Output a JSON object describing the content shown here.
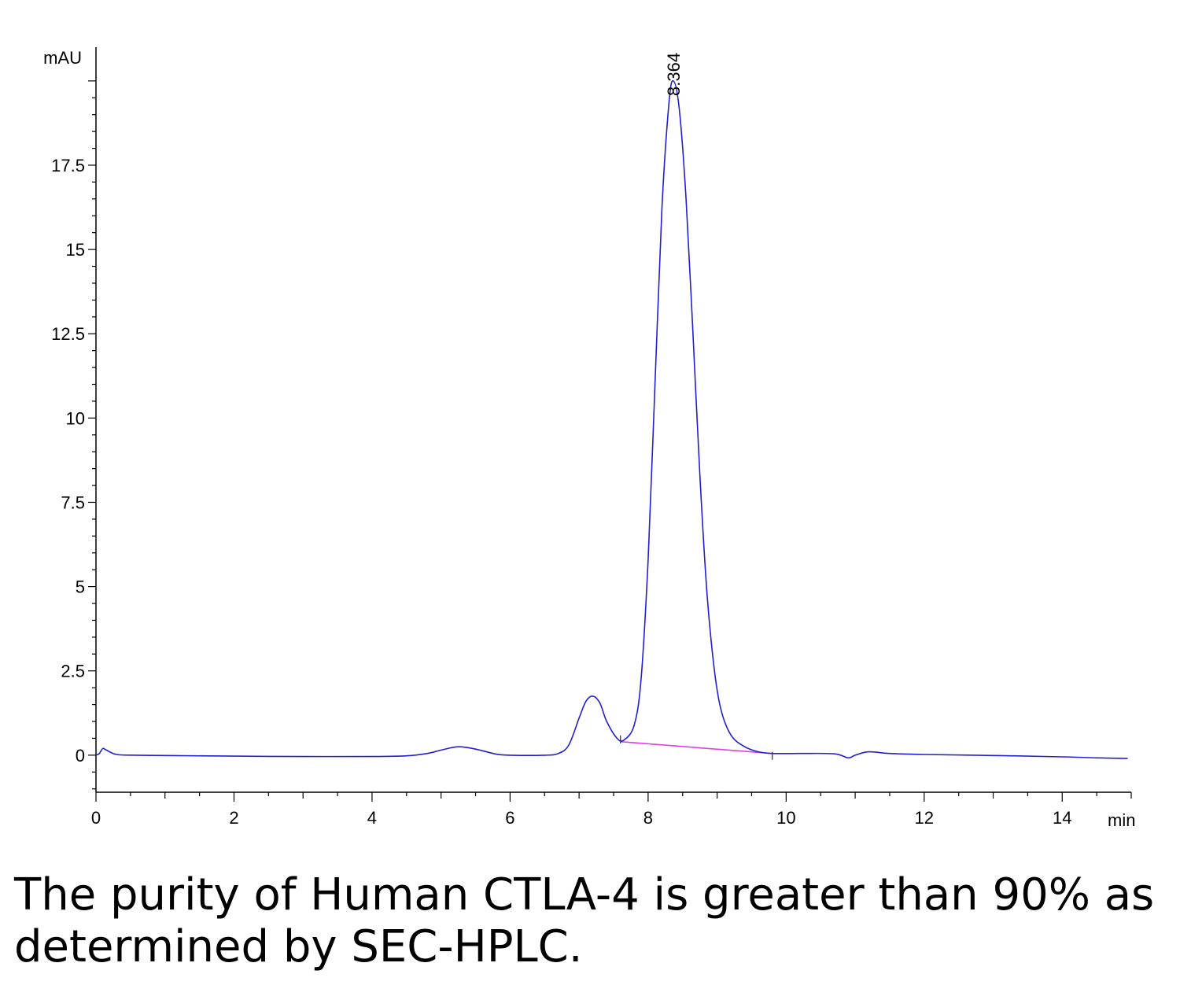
{
  "chart_data": {
    "type": "line",
    "y_unit": "mAU",
    "x_unit": "min",
    "xlim": [
      0,
      15
    ],
    "ylim": [
      -1.1,
      21
    ],
    "x_ticks": [
      0,
      2,
      4,
      6,
      8,
      10,
      12,
      14
    ],
    "y_ticks": [
      0,
      2.5,
      5,
      7.5,
      10,
      12.5,
      15,
      17.5
    ],
    "peak_label": "8.364",
    "peak_label_x": 8.364,
    "colors": {
      "trace": "#2020d0",
      "baseline": "#e040e0",
      "axis": "#000000"
    },
    "baseline_segment": [
      [
        7.6,
        0.4
      ],
      [
        9.8,
        0.05
      ]
    ],
    "series": [
      {
        "values": [
          [
            0.0,
            0.0
          ],
          [
            0.05,
            0.05
          ],
          [
            0.1,
            0.2
          ],
          [
            0.15,
            0.15
          ],
          [
            0.3,
            0.02
          ],
          [
            0.6,
            0.0
          ],
          [
            1.0,
            -0.01
          ],
          [
            2.0,
            -0.03
          ],
          [
            3.0,
            -0.04
          ],
          [
            4.0,
            -0.04
          ],
          [
            4.5,
            -0.02
          ],
          [
            4.8,
            0.05
          ],
          [
            5.0,
            0.15
          ],
          [
            5.25,
            0.25
          ],
          [
            5.5,
            0.18
          ],
          [
            5.8,
            0.03
          ],
          [
            6.0,
            0.0
          ],
          [
            6.5,
            0.0
          ],
          [
            6.7,
            0.05
          ],
          [
            6.85,
            0.3
          ],
          [
            7.0,
            1.1
          ],
          [
            7.1,
            1.6
          ],
          [
            7.2,
            1.75
          ],
          [
            7.3,
            1.55
          ],
          [
            7.4,
            1.0
          ],
          [
            7.55,
            0.5
          ],
          [
            7.65,
            0.45
          ],
          [
            7.8,
            0.9
          ],
          [
            7.9,
            2.3
          ],
          [
            8.0,
            5.8
          ],
          [
            8.1,
            11.0
          ],
          [
            8.2,
            16.2
          ],
          [
            8.3,
            19.3
          ],
          [
            8.364,
            20.0
          ],
          [
            8.45,
            19.2
          ],
          [
            8.55,
            16.5
          ],
          [
            8.65,
            12.5
          ],
          [
            8.75,
            8.3
          ],
          [
            8.85,
            4.9
          ],
          [
            8.95,
            2.7
          ],
          [
            9.05,
            1.4
          ],
          [
            9.2,
            0.6
          ],
          [
            9.4,
            0.25
          ],
          [
            9.6,
            0.1
          ],
          [
            9.8,
            0.05
          ],
          [
            10.2,
            0.05
          ],
          [
            10.7,
            0.04
          ],
          [
            10.9,
            -0.08
          ],
          [
            11.0,
            0.0
          ],
          [
            11.2,
            0.1
          ],
          [
            11.5,
            0.05
          ],
          [
            12.0,
            0.02
          ],
          [
            13.0,
            -0.01
          ],
          [
            14.0,
            -0.05
          ],
          [
            14.5,
            -0.08
          ],
          [
            14.95,
            -0.1
          ]
        ]
      }
    ]
  },
  "caption": "The purity of Human CTLA-4 is greater than 90% as determined by SEC-HPLC."
}
